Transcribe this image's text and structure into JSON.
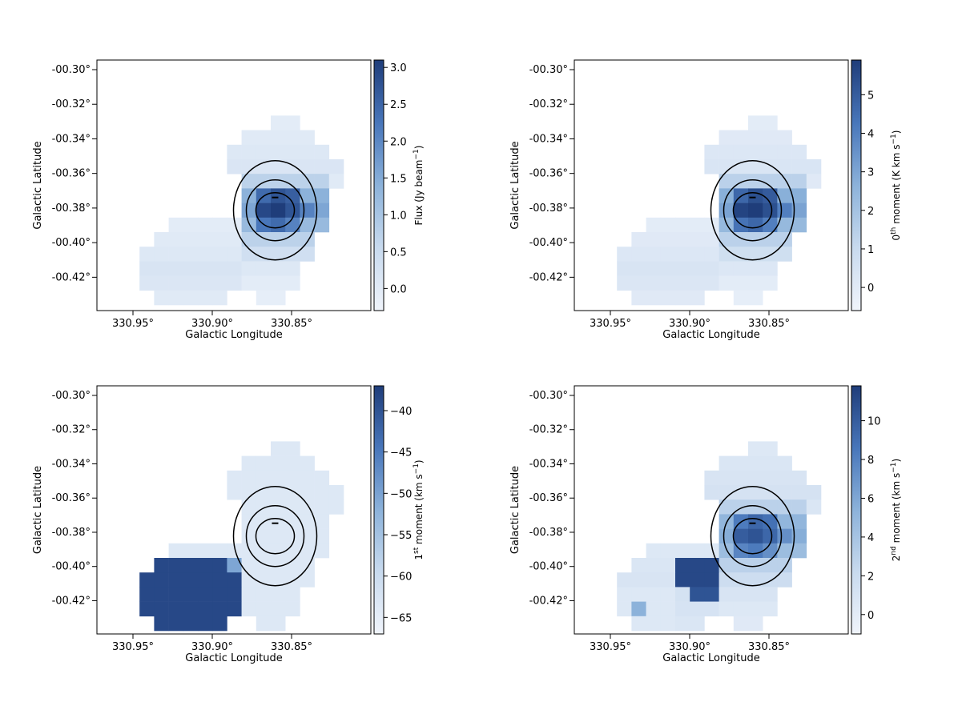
{
  "chart_data": [
    {
      "type": "heatmap",
      "panel": "top-left",
      "title": "",
      "xlabel": "Galactic Longitude",
      "ylabel": "Galactic Latitude",
      "x_ticks": [
        "330.95°",
        "330.90°",
        "330.85°"
      ],
      "y_ticks": [
        "-00.30°",
        "-00.32°",
        "-00.34°",
        "-00.36°",
        "-00.38°",
        "-00.40°",
        "-00.42°"
      ],
      "colorbar": {
        "label": "Flux (Jy beam",
        "label_sup": "−1",
        "label_end": ")",
        "ticks": [
          "0.0",
          "0.5",
          "1.0",
          "1.5",
          "2.0",
          "2.5",
          "3.0"
        ],
        "range": [
          -0.3,
          3.1
        ]
      },
      "contours": true,
      "peak_value": 3.0
    },
    {
      "type": "heatmap",
      "panel": "top-right",
      "title": "",
      "xlabel": "Galactic Longitude",
      "ylabel": "Galactic Latitude",
      "x_ticks": [
        "330.95°",
        "330.90°",
        "330.85°"
      ],
      "y_ticks": [
        "-00.30°",
        "-00.32°",
        "-00.34°",
        "-00.36°",
        "-00.38°",
        "-00.40°",
        "-00.42°"
      ],
      "colorbar": {
        "label": "0",
        "label_sup": "th",
        "label_end": " moment (K km s",
        "label_sup2": "−1",
        "label_end2": ")",
        "ticks": [
          "0",
          "1",
          "2",
          "3",
          "4",
          "5"
        ],
        "range": [
          -0.6,
          5.9
        ]
      },
      "contours": true,
      "peak_value": 5.6
    },
    {
      "type": "heatmap",
      "panel": "bottom-left",
      "title": "",
      "xlabel": "Galactic Longitude",
      "ylabel": "Galactic Latitude",
      "x_ticks": [
        "330.95°",
        "330.90°",
        "330.85°"
      ],
      "y_ticks": [
        "-00.30°",
        "-00.32°",
        "-00.34°",
        "-00.36°",
        "-00.38°",
        "-00.40°",
        "-00.42°"
      ],
      "colorbar": {
        "label": "1",
        "label_sup": "st",
        "label_end": " moment (km s",
        "label_sup2": "−1",
        "label_end2": ")",
        "ticks": [
          "−65",
          "−60",
          "−55",
          "−50",
          "−45",
          "−40"
        ],
        "range": [
          -67,
          -37
        ]
      },
      "contours": true,
      "main_clump_velocity": -63,
      "secondary_clump_velocity": -39
    },
    {
      "type": "heatmap",
      "panel": "bottom-right",
      "title": "",
      "xlabel": "Galactic Longitude",
      "ylabel": "Galactic Latitude",
      "x_ticks": [
        "330.95°",
        "330.90°",
        "330.85°"
      ],
      "y_ticks": [
        "-00.30°",
        "-00.32°",
        "-00.34°",
        "-00.36°",
        "-00.38°",
        "-00.40°",
        "-00.42°"
      ],
      "colorbar": {
        "label": "2",
        "label_sup": "nd",
        "label_end": " moment (km s",
        "label_sup2": "−1",
        "label_end2": ")",
        "ticks": [
          "0",
          "2",
          "4",
          "6",
          "8",
          "10"
        ],
        "range": [
          -1,
          11.8
        ]
      },
      "contours": true,
      "peak_value": 11
    }
  ],
  "colors": {
    "low": "#f0f4fb",
    "high": "#1f3d7a",
    "contour": "#000000",
    "frame": "#000000"
  }
}
